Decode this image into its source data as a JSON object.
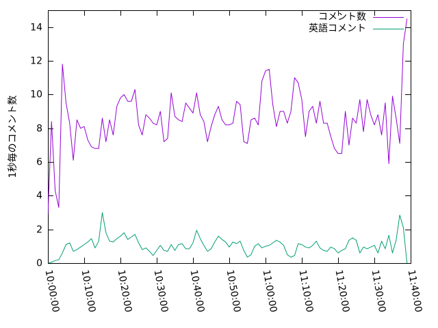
{
  "chart_data": {
    "type": "line",
    "title": "",
    "xlabel": "",
    "ylabel": "1秒毎のコメント数",
    "xlim": [
      "10:00:00",
      "11:40:00"
    ],
    "ylim": [
      0,
      15
    ],
    "x_ticks": [
      "10:00:00",
      "10:10:00",
      "10:20:00",
      "10:30:00",
      "10:40:00",
      "10:50:00",
      "11:00:00",
      "11:10:00",
      "11:20:00",
      "11:30:00",
      "11:40:00"
    ],
    "y_ticks": [
      "0",
      "2",
      "4",
      "6",
      "8",
      "10",
      "12",
      "14"
    ],
    "grid": false,
    "legend_placement": "top-right",
    "x_unit": "minutes after 10:00:00",
    "x": [
      0,
      1,
      2,
      3,
      4,
      5,
      6,
      7,
      8,
      9,
      10,
      11,
      12,
      13,
      14,
      15,
      16,
      17,
      18,
      19,
      20,
      21,
      22,
      23,
      24,
      25,
      26,
      27,
      28,
      29,
      30,
      31,
      32,
      33,
      34,
      35,
      36,
      37,
      38,
      39,
      40,
      41,
      42,
      43,
      44,
      45,
      46,
      47,
      48,
      49,
      50,
      51,
      52,
      53,
      54,
      55,
      56,
      57,
      58,
      59,
      60,
      61,
      62,
      63,
      64,
      65,
      66,
      67,
      68,
      69,
      70,
      71,
      72,
      73,
      74,
      75,
      76,
      77,
      78,
      79,
      80,
      81,
      82,
      83,
      84,
      85,
      86,
      87,
      88,
      89,
      90,
      91,
      92,
      93,
      94,
      95,
      96,
      97,
      98,
      99
    ],
    "series": [
      {
        "name": "コメント数",
        "color": "#9400d3",
        "values": [
          2.9,
          8.4,
          4.3,
          3.3,
          11.8,
          9.5,
          8.3,
          6.1,
          8.5,
          8.0,
          8.1,
          7.3,
          6.9,
          6.8,
          6.8,
          8.6,
          7.2,
          8.5,
          7.6,
          9.3,
          9.8,
          10.0,
          9.6,
          9.6,
          10.3,
          8.2,
          7.6,
          8.8,
          8.6,
          8.3,
          8.2,
          9.0,
          7.2,
          7.4,
          10.1,
          8.7,
          8.5,
          8.4,
          9.5,
          9.2,
          8.9,
          10.1,
          8.8,
          8.4,
          7.2,
          8.1,
          8.8,
          9.3,
          8.5,
          8.2,
          8.2,
          8.3,
          9.6,
          9.4,
          7.2,
          7.1,
          8.5,
          8.6,
          8.2,
          10.8,
          11.4,
          11.5,
          9.4,
          8.1,
          9.0,
          9.0,
          8.3,
          9.0,
          11.0,
          10.7,
          9.7,
          7.5,
          9.0,
          9.3,
          8.3,
          9.6,
          8.3,
          8.3,
          7.5,
          6.8,
          6.5,
          6.5,
          9.0,
          7.0,
          8.6,
          8.3,
          9.7,
          7.8,
          9.7,
          8.8,
          8.2,
          8.8,
          7.6,
          9.5,
          5.9,
          9.9,
          8.6,
          7.1,
          13.0,
          14.5
        ]
      },
      {
        "name": "英語コメント",
        "color": "#009e73",
        "values": [
          0.0,
          0.05,
          0.15,
          0.2,
          0.6,
          1.1,
          1.2,
          0.7,
          0.8,
          0.95,
          1.1,
          1.25,
          1.45,
          0.9,
          1.3,
          3.0,
          1.8,
          1.3,
          1.25,
          1.45,
          1.6,
          1.8,
          1.4,
          1.55,
          1.7,
          1.2,
          0.8,
          0.9,
          0.7,
          0.45,
          0.75,
          1.05,
          0.75,
          0.7,
          1.1,
          0.75,
          1.1,
          1.15,
          0.85,
          0.85,
          1.2,
          1.95,
          1.45,
          1.05,
          0.7,
          0.85,
          1.25,
          1.6,
          1.4,
          1.25,
          0.95,
          1.25,
          1.15,
          1.3,
          0.75,
          0.35,
          0.5,
          1.0,
          1.15,
          0.9,
          1.0,
          1.05,
          1.2,
          1.35,
          1.25,
          1.05,
          0.5,
          0.35,
          0.45,
          1.15,
          1.1,
          0.95,
          0.9,
          1.05,
          1.3,
          0.9,
          0.75,
          0.7,
          0.95,
          0.85,
          0.6,
          0.75,
          0.85,
          1.35,
          1.5,
          1.35,
          0.6,
          0.95,
          0.85,
          0.95,
          1.05,
          0.6,
          1.3,
          0.85,
          1.65,
          0.6,
          1.35,
          2.85,
          2.1,
          0.0
        ]
      }
    ]
  }
}
